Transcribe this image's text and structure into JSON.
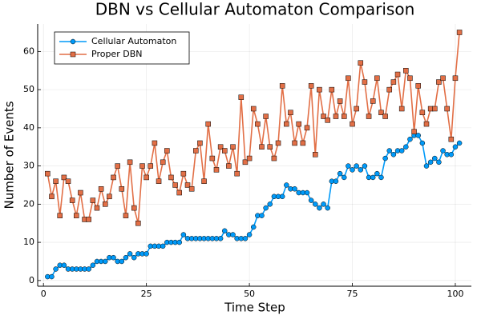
{
  "chart_data": {
    "type": "line",
    "title": "DBN vs Cellular Automaton Comparison",
    "x_label": "Time Step",
    "y_label": "Number of Events",
    "x": [
      1,
      2,
      3,
      4,
      5,
      6,
      7,
      8,
      9,
      10,
      11,
      12,
      13,
      14,
      15,
      16,
      17,
      18,
      19,
      20,
      21,
      22,
      23,
      24,
      25,
      26,
      27,
      28,
      29,
      30,
      31,
      32,
      33,
      34,
      35,
      36,
      37,
      38,
      39,
      40,
      41,
      42,
      43,
      44,
      45,
      46,
      47,
      48,
      49,
      50,
      51,
      52,
      53,
      54,
      55,
      56,
      57,
      58,
      59,
      60,
      61,
      62,
      63,
      64,
      65,
      66,
      67,
      68,
      69,
      70,
      71,
      72,
      73,
      74,
      75,
      76,
      77,
      78,
      79,
      80,
      81,
      82,
      83,
      84,
      85,
      86,
      87,
      88,
      89,
      90,
      91,
      92,
      93,
      94,
      95,
      96,
      97,
      98,
      99,
      100,
      101
    ],
    "series": [
      {
        "name": "Cellular Automaton",
        "color": "#009af9",
        "marker": "circle",
        "values": [
          1,
          1,
          3,
          4,
          4,
          3,
          3,
          3,
          3,
          3,
          3,
          4,
          5,
          5,
          5,
          6,
          6,
          5,
          5,
          6,
          7,
          6,
          7,
          7,
          7,
          9,
          9,
          9,
          9,
          10,
          10,
          10,
          10,
          12,
          11,
          11,
          11,
          11,
          11,
          11,
          11,
          11,
          11,
          13,
          12,
          12,
          11,
          11,
          11,
          12,
          14,
          17,
          17,
          19,
          20,
          22,
          22,
          22,
          25,
          24,
          24,
          23,
          23,
          23,
          21,
          20,
          19,
          20,
          19,
          26,
          26,
          28,
          27,
          30,
          29,
          30,
          29,
          30,
          27,
          27,
          28,
          27,
          32,
          34,
          33,
          34,
          34,
          35,
          37,
          38,
          38,
          36,
          30,
          31,
          32,
          31,
          34,
          33,
          33,
          35,
          36
        ]
      },
      {
        "name": "Proper DBN",
        "color": "#e26f46",
        "marker": "square",
        "values": [
          28,
          22,
          26,
          17,
          27,
          26,
          21,
          17,
          23,
          16,
          16,
          21,
          19,
          24,
          20,
          22,
          27,
          30,
          24,
          17,
          31,
          19,
          15,
          30,
          27,
          30,
          36,
          26,
          31,
          34,
          27,
          25,
          23,
          28,
          25,
          24,
          34,
          36,
          26,
          41,
          32,
          29,
          35,
          34,
          30,
          35,
          28,
          48,
          31,
          32,
          45,
          41,
          35,
          43,
          35,
          32,
          36,
          51,
          41,
          44,
          36,
          41,
          36,
          40,
          51,
          33,
          50,
          43,
          42,
          50,
          43,
          47,
          43,
          53,
          41,
          45,
          57,
          52,
          43,
          47,
          53,
          44,
          43,
          50,
          52,
          54,
          45,
          55,
          53,
          39,
          51,
          44,
          41,
          45,
          45,
          52,
          53,
          45,
          37,
          53,
          65
        ]
      }
    ],
    "xlim": [
      -1.4,
      103.9
    ],
    "xticks": [
      0,
      25,
      50,
      75,
      100
    ],
    "ylim": [
      -1.5,
      67.2
    ],
    "yticks": [
      0,
      10,
      20,
      30,
      40,
      50,
      60
    ],
    "grid": true,
    "legend": "top-left"
  }
}
